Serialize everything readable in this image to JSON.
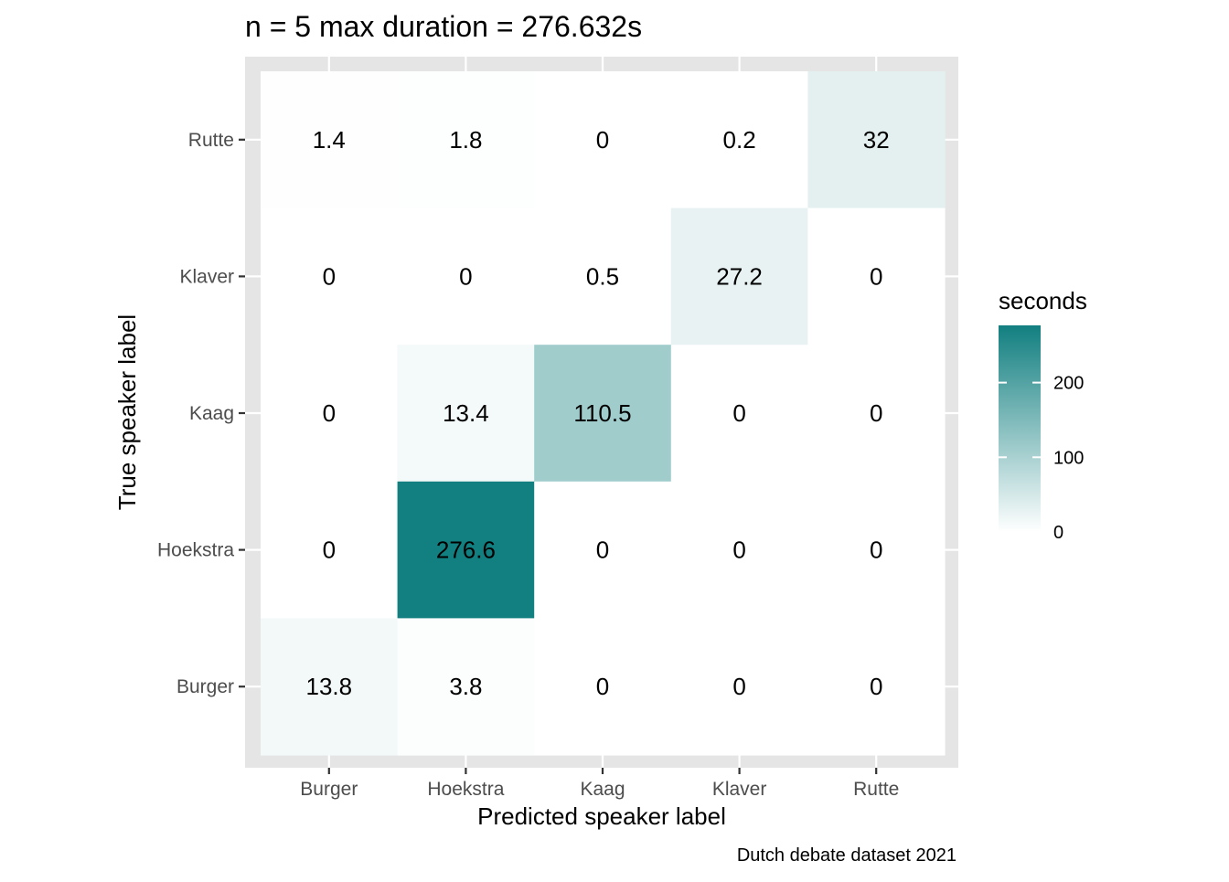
{
  "chart_data": {
    "type": "heatmap",
    "title": "n = 5 max duration = 276.632s",
    "xlabel": "Predicted speaker label",
    "ylabel": "True speaker label",
    "caption": "Dutch debate dataset 2021",
    "x_categories": [
      "Burger",
      "Hoekstra",
      "Kaag",
      "Klaver",
      "Rutte"
    ],
    "y_categories": [
      "Burger",
      "Hoekstra",
      "Kaag",
      "Klaver",
      "Rutte"
    ],
    "cells": [
      {
        "x": "Burger",
        "y": "Rutte",
        "value": 1.4,
        "label": "1.4"
      },
      {
        "x": "Hoekstra",
        "y": "Rutte",
        "value": 1.8,
        "label": "1.8"
      },
      {
        "x": "Kaag",
        "y": "Rutte",
        "value": 0,
        "label": "0"
      },
      {
        "x": "Klaver",
        "y": "Rutte",
        "value": 0.2,
        "label": "0.2"
      },
      {
        "x": "Rutte",
        "y": "Rutte",
        "value": 32,
        "label": "32"
      },
      {
        "x": "Burger",
        "y": "Klaver",
        "value": 0,
        "label": "0"
      },
      {
        "x": "Hoekstra",
        "y": "Klaver",
        "value": 0,
        "label": "0"
      },
      {
        "x": "Kaag",
        "y": "Klaver",
        "value": 0.5,
        "label": "0.5"
      },
      {
        "x": "Klaver",
        "y": "Klaver",
        "value": 27.2,
        "label": "27.2"
      },
      {
        "x": "Rutte",
        "y": "Klaver",
        "value": 0,
        "label": "0"
      },
      {
        "x": "Burger",
        "y": "Kaag",
        "value": 0,
        "label": "0"
      },
      {
        "x": "Hoekstra",
        "y": "Kaag",
        "value": 13.4,
        "label": "13.4"
      },
      {
        "x": "Kaag",
        "y": "Kaag",
        "value": 110.5,
        "label": "110.5"
      },
      {
        "x": "Klaver",
        "y": "Kaag",
        "value": 0,
        "label": "0"
      },
      {
        "x": "Rutte",
        "y": "Kaag",
        "value": 0,
        "label": "0"
      },
      {
        "x": "Burger",
        "y": "Hoekstra",
        "value": 0,
        "label": "0"
      },
      {
        "x": "Hoekstra",
        "y": "Hoekstra",
        "value": 276.6,
        "label": "276.6"
      },
      {
        "x": "Kaag",
        "y": "Hoekstra",
        "value": 0,
        "label": "0"
      },
      {
        "x": "Klaver",
        "y": "Hoekstra",
        "value": 0,
        "label": "0"
      },
      {
        "x": "Rutte",
        "y": "Hoekstra",
        "value": 0,
        "label": "0"
      },
      {
        "x": "Burger",
        "y": "Burger",
        "value": 13.8,
        "label": "13.8"
      },
      {
        "x": "Hoekstra",
        "y": "Burger",
        "value": 3.8,
        "label": "3.8"
      },
      {
        "x": "Kaag",
        "y": "Burger",
        "value": 0,
        "label": "0"
      },
      {
        "x": "Klaver",
        "y": "Burger",
        "value": 0,
        "label": "0"
      },
      {
        "x": "Rutte",
        "y": "Burger",
        "value": 0,
        "label": "0"
      }
    ],
    "legend": {
      "title": "seconds",
      "ticks": [
        0,
        100,
        200
      ],
      "range": [
        0,
        276.632
      ],
      "low_color": "#ffffff",
      "high_color": "#127f80",
      "placement": "right"
    },
    "colors": {
      "panel_background": "#e5e5e5",
      "gridline": "#ffffff",
      "text": "#000000",
      "tick_label": "#4d4d4d"
    }
  }
}
